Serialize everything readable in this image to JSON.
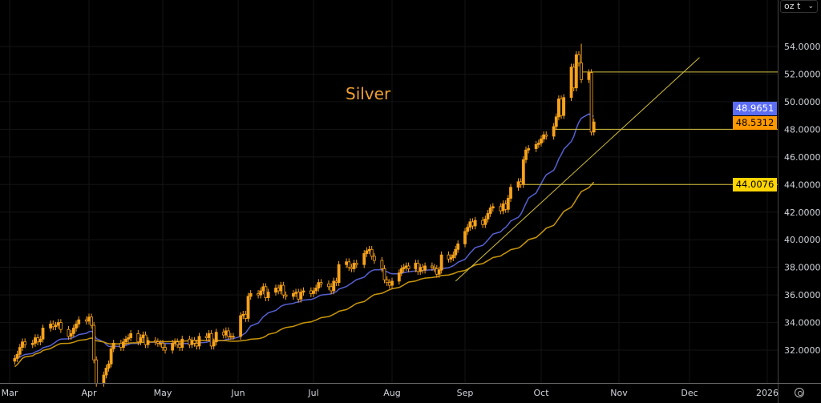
{
  "chart_data": {
    "type": "candlestick",
    "title": "Silver",
    "unit_label": "oz t",
    "x_tick_labels": [
      "Mar",
      "Apr",
      "May",
      "Jun",
      "Jul",
      "Aug",
      "Sep",
      "Oct",
      "Nov",
      "Dec",
      "2026"
    ],
    "y_tick_labels": [
      "54.0000",
      "52.0000",
      "50.0000",
      "48.0000",
      "46.0000",
      "44.0000",
      "42.0000",
      "40.0000",
      "38.0000",
      "36.0000",
      "34.0000",
      "32.0000"
    ],
    "ylim": [
      29.5,
      57.0
    ],
    "grid": true,
    "closes": [
      31.4,
      31.7,
      32.2,
      32.6,
      32.4,
      32.5,
      32.9,
      32.6,
      32.8,
      33.6,
      33.9,
      33.7,
      33.8,
      34.0,
      33.5,
      33.0,
      33.2,
      33.6,
      33.9,
      34.2,
      34.1,
      34.4,
      33.8,
      31.3,
      29.6,
      30.2,
      30.7,
      31.0,
      32.1,
      32.5,
      32.2,
      32.6,
      32.8,
      32.9,
      33.2,
      32.6,
      32.9,
      33.1,
      32.4,
      32.7,
      32.6,
      32.5,
      32.5,
      32.2,
      32.0,
      32.5,
      32.6,
      32.4,
      32.2,
      32.8,
      32.4,
      32.7,
      32.5,
      32.3,
      33.0,
      32.9,
      33.2,
      32.3,
      32.6,
      33.3,
      33.1,
      33.4,
      33.0,
      33.0,
      33.0,
      34.5,
      34.6,
      34.3,
      35.9,
      36.1,
      36.0,
      36.3,
      36.6,
      35.8,
      36.2,
      36.5,
      36.3,
      36.7,
      36.0,
      35.9,
      36.1,
      36.2,
      35.7,
      36.2,
      36.3,
      36.1,
      36.3,
      36.5,
      36.9,
      36.8,
      36.6,
      36.3,
      37.0,
      36.9,
      38.2,
      38.4,
      38.0,
      37.9,
      38.3,
      38.2,
      39.0,
      39.2,
      39.3,
      38.8,
      38.5,
      37.9,
      37.1,
      36.9,
      36.7,
      37.0,
      37.6,
      37.9,
      38.0,
      38.1,
      37.9,
      38.3,
      37.7,
      38.0,
      37.8,
      38.1,
      38.0,
      37.9,
      37.5,
      37.8,
      38.9,
      38.6,
      38.7,
      38.9,
      39.3,
      39.7,
      40.6,
      40.9,
      41.3,
      41.0,
      41.4,
      41.1,
      41.5,
      41.9,
      42.3,
      42.4,
      42.1,
      42.6,
      42.2,
      43.0,
      43.8,
      44.2,
      44.0,
      45.8,
      46.5,
      46.6,
      46.9,
      47.0,
      47.3,
      47.6,
      47.5,
      48.2,
      48.9,
      50.2,
      49.0,
      50.3,
      52.5,
      51.0,
      53.4,
      52.8,
      51.6,
      52.1,
      47.8,
      48.53
    ],
    "period_high": 54.2,
    "moving_averages": [
      {
        "color": "#5560d0",
        "last_value": "48.9651"
      },
      {
        "color": "#c8960c",
        "last_value": "44.0076"
      }
    ],
    "horizontal_lines": [
      {
        "price": 52.15,
        "from": "2025-10-17",
        "color": "#d4c040"
      },
      {
        "price": 48.0,
        "from": "2025-10-06",
        "color": "#d4c040"
      },
      {
        "price": 44.0,
        "from": "2025-09-24",
        "color": "#d4c040"
      }
    ],
    "trendline": {
      "from": [
        "2025-08-28",
        37.0
      ],
      "to": [
        "2025-12-05",
        53.2
      ],
      "color": "#d4c040"
    },
    "badges": [
      {
        "label": "48.9651",
        "price": 48.9651,
        "bg": "#5b6cf5",
        "fg": "#ffffff"
      },
      {
        "label": "48.5312",
        "price": 48.5312,
        "bg": "#ff9800",
        "fg": "#000000"
      },
      {
        "label": "44.0076",
        "price": 44.0076,
        "bg": "#ffd400",
        "fg": "#000000"
      }
    ],
    "candle_color": "#f7a21b"
  }
}
